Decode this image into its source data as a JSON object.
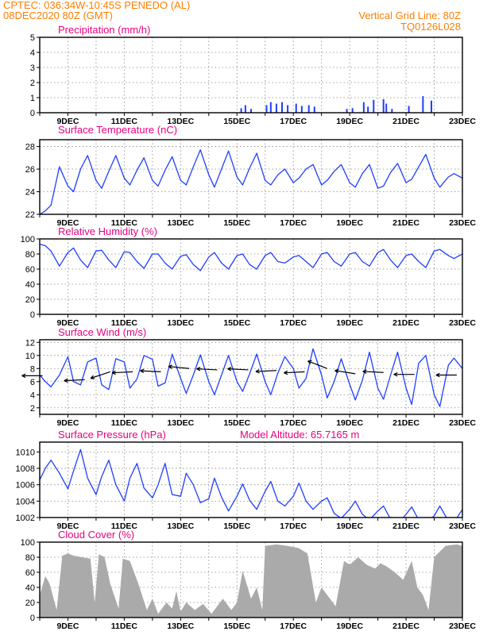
{
  "header": {
    "line1_left": "CPTEC:   036:34W-10:45S   PENEDO (AL)",
    "line2_left": "08DEC2020 80Z (GMT)",
    "line1_right": "Vertical Grid Line: 80Z",
    "line2_right": "TQ0126L028"
  },
  "colors": {
    "header_text": "#ff7f00",
    "panel_title": "#e8007f",
    "line": "#1f3fff",
    "cloud_fill": "#aaaaaa",
    "grid": "#888888"
  },
  "x_axis": {
    "start_day": 8,
    "end_day": 23,
    "tick_labels": [
      "9DEC",
      "11DEC",
      "13DEC",
      "15DEC",
      "17DEC",
      "19DEC",
      "21DEC",
      "23DEC"
    ]
  },
  "chart_data": [
    {
      "type": "bar",
      "title": "Precipitation (mm/h)",
      "ylim": [
        0,
        5
      ],
      "yticks": [
        "0",
        "1",
        "2",
        "3",
        "4",
        "5"
      ],
      "x_days": [
        15.15,
        15.3,
        15.5,
        16.05,
        16.2,
        16.4,
        16.6,
        16.8,
        17.1,
        17.3,
        17.55,
        17.75,
        18.9,
        19.1,
        19.5,
        19.65,
        19.85,
        20.2,
        20.3,
        20.5,
        21.1,
        21.6,
        21.9
      ],
      "values": [
        0.3,
        0.5,
        0.25,
        0.5,
        0.7,
        0.6,
        0.7,
        0.5,
        0.6,
        0.45,
        0.5,
        0.4,
        0.25,
        0.3,
        0.7,
        0.4,
        0.85,
        0.9,
        0.6,
        0.25,
        0.45,
        1.1,
        0.8
      ]
    },
    {
      "type": "line",
      "title": "Surface Temperature (nC)",
      "ylim": [
        22,
        28.6
      ],
      "yticks": [
        "22",
        "24",
        "26",
        "28"
      ],
      "x": [
        8.0,
        8.2,
        8.4,
        8.55,
        8.7,
        9.0,
        9.2,
        9.45,
        9.7,
        10.0,
        10.2,
        10.45,
        10.7,
        11.0,
        11.2,
        11.45,
        11.7,
        12.0,
        12.2,
        12.45,
        12.7,
        13.0,
        13.2,
        13.45,
        13.7,
        14.0,
        14.2,
        14.45,
        14.7,
        15.0,
        15.2,
        15.45,
        15.7,
        16.0,
        16.2,
        16.45,
        16.7,
        17.0,
        17.2,
        17.45,
        17.7,
        18.0,
        18.2,
        18.45,
        18.7,
        19.0,
        19.2,
        19.45,
        19.7,
        20.0,
        20.2,
        20.45,
        20.7,
        21.0,
        21.2,
        21.45,
        21.7,
        22.0,
        22.2,
        22.5,
        22.7,
        23.0
      ],
      "y": [
        22.0,
        22.3,
        22.8,
        24.5,
        26.2,
        24.5,
        24.0,
        26.0,
        27.2,
        25.0,
        24.3,
        25.8,
        27.2,
        25.2,
        24.6,
        25.9,
        27.0,
        25.0,
        24.5,
        25.9,
        27.1,
        25.0,
        24.6,
        26.2,
        27.7,
        25.5,
        24.4,
        26.0,
        27.6,
        25.3,
        24.6,
        26.1,
        27.4,
        25.0,
        24.6,
        25.5,
        26.0,
        24.8,
        25.2,
        26.0,
        26.4,
        24.6,
        25.0,
        25.8,
        26.4,
        24.8,
        24.4,
        25.6,
        26.4,
        24.3,
        24.5,
        25.7,
        26.5,
        24.8,
        25.1,
        26.2,
        27.3,
        25.2,
        24.4,
        25.3,
        25.6,
        25.2
      ]
    },
    {
      "type": "line",
      "title": "Relative Humidity (%)",
      "ylim": [
        0,
        100
      ],
      "yticks": [
        "0",
        "20",
        "40",
        "60",
        "80",
        "100"
      ],
      "x": [
        8.0,
        8.2,
        8.4,
        8.7,
        9.0,
        9.2,
        9.45,
        9.7,
        10.0,
        10.2,
        10.45,
        10.7,
        11.0,
        11.2,
        11.45,
        11.7,
        12.0,
        12.2,
        12.45,
        12.7,
        13.0,
        13.2,
        13.45,
        13.7,
        14.0,
        14.2,
        14.45,
        14.7,
        15.0,
        15.2,
        15.45,
        15.7,
        16.0,
        16.2,
        16.45,
        16.7,
        17.0,
        17.2,
        17.45,
        17.7,
        18.0,
        18.2,
        18.45,
        18.7,
        19.0,
        19.2,
        19.45,
        19.7,
        20.0,
        20.2,
        20.45,
        20.7,
        21.0,
        21.2,
        21.45,
        21.7,
        22.0,
        22.2,
        22.5,
        22.7,
        23.0
      ],
      "y": [
        93,
        91,
        84,
        64,
        82,
        88,
        72,
        62,
        84,
        85,
        72,
        62,
        83,
        82,
        70,
        61,
        80,
        80,
        68,
        60,
        77,
        79,
        66,
        58,
        76,
        82,
        68,
        60,
        78,
        80,
        66,
        60,
        78,
        82,
        70,
        68,
        76,
        78,
        70,
        62,
        80,
        82,
        70,
        64,
        80,
        82,
        70,
        64,
        82,
        86,
        72,
        62,
        78,
        80,
        70,
        62,
        84,
        86,
        78,
        74,
        80
      ]
    },
    {
      "type": "line",
      "title": "Surface Wind (m/s)",
      "ylim": [
        1,
        12.4
      ],
      "yticks": [
        "2",
        "4",
        "6",
        "8",
        "10",
        "12"
      ],
      "x": [
        8.0,
        8.2,
        8.4,
        8.7,
        9.0,
        9.2,
        9.45,
        9.7,
        10.0,
        10.2,
        10.45,
        10.7,
        11.0,
        11.2,
        11.45,
        11.7,
        12.0,
        12.2,
        12.45,
        12.7,
        13.0,
        13.2,
        13.45,
        13.7,
        14.0,
        14.2,
        14.45,
        14.7,
        15.0,
        15.2,
        15.45,
        15.7,
        16.0,
        16.2,
        16.45,
        16.7,
        17.0,
        17.2,
        17.45,
        17.7,
        18.0,
        18.2,
        18.45,
        18.7,
        19.0,
        19.2,
        19.45,
        19.7,
        20.0,
        20.2,
        20.45,
        20.7,
        21.0,
        21.2,
        21.45,
        21.7,
        22.0,
        22.2,
        22.5,
        22.7,
        23.0
      ],
      "y": [
        7.0,
        6.0,
        5.2,
        7.0,
        9.8,
        6.0,
        5.5,
        9.0,
        9.6,
        5.5,
        4.8,
        9.5,
        9.0,
        5.0,
        6.4,
        10.0,
        9.4,
        5.3,
        5.8,
        10.2,
        6.5,
        4.2,
        7.0,
        10.1,
        6.0,
        4.0,
        7.0,
        10.0,
        6.0,
        4.5,
        7.2,
        10.2,
        6.0,
        4.0,
        7.3,
        9.8,
        8.0,
        5.0,
        6.5,
        11.0,
        7.0,
        3.5,
        6.0,
        9.5,
        5.6,
        3.2,
        6.2,
        10.5,
        5.0,
        3.3,
        7.0,
        10.5,
        5.0,
        2.5,
        8.8,
        10.0,
        4.0,
        2.2,
        8.5,
        9.6,
        8.0
      ],
      "arrows": [
        {
          "x": 8.1,
          "y": 6.9,
          "dx": -1.0,
          "dy": 0.0
        },
        {
          "x": 9.6,
          "y": 6.3,
          "dx": -1.0,
          "dy": -0.05
        },
        {
          "x": 10.5,
          "y": 7.5,
          "dx": -0.9,
          "dy": -0.3
        },
        {
          "x": 11.3,
          "y": 7.5,
          "dx": -1.0,
          "dy": -0.05
        },
        {
          "x": 12.3,
          "y": 7.5,
          "dx": -1.0,
          "dy": 0.05
        },
        {
          "x": 13.3,
          "y": 8.0,
          "dx": -1.0,
          "dy": 0.1
        },
        {
          "x": 14.3,
          "y": 7.8,
          "dx": -1.0,
          "dy": 0.05
        },
        {
          "x": 15.4,
          "y": 7.8,
          "dx": -1.0,
          "dy": 0.05
        },
        {
          "x": 16.4,
          "y": 7.7,
          "dx": -1.0,
          "dy": -0.05
        },
        {
          "x": 17.4,
          "y": 7.5,
          "dx": -1.0,
          "dy": -0.05
        },
        {
          "x": 18.2,
          "y": 8.0,
          "dx": -0.9,
          "dy": 0.35
        },
        {
          "x": 19.2,
          "y": 7.2,
          "dx": -0.95,
          "dy": 0.15
        },
        {
          "x": 20.2,
          "y": 7.4,
          "dx": -1.0,
          "dy": 0.05
        },
        {
          "x": 21.3,
          "y": 7.1,
          "dx": -1.0,
          "dy": 0.0
        },
        {
          "x": 22.8,
          "y": 7.0,
          "dx": -1.0,
          "dy": 0.0
        }
      ]
    },
    {
      "type": "line",
      "title": "Surface Pressure (hPa)",
      "subtitle": "Model Altitude: 65.7165 m",
      "ylim": [
        1002,
        1011.2
      ],
      "yticks": [
        "1002",
        "1004",
        "1006",
        "1008",
        "1010"
      ],
      "x": [
        8.0,
        8.2,
        8.4,
        8.7,
        9.0,
        9.2,
        9.45,
        9.7,
        10.0,
        10.2,
        10.45,
        10.7,
        11.0,
        11.2,
        11.45,
        11.7,
        12.0,
        12.2,
        12.45,
        12.7,
        13.0,
        13.2,
        13.45,
        13.7,
        14.0,
        14.2,
        14.45,
        14.7,
        15.0,
        15.2,
        15.45,
        15.7,
        16.0,
        16.2,
        16.45,
        16.7,
        17.0,
        17.2,
        17.45,
        17.7,
        18.0,
        18.2,
        18.45,
        18.7,
        19.0,
        19.2,
        19.45,
        19.7,
        20.0,
        20.2,
        20.45,
        20.7,
        21.0,
        21.2,
        21.45,
        21.7,
        22.0,
        22.2,
        22.5,
        22.7,
        23.0
      ],
      "y": [
        1006.6,
        1008.0,
        1009.0,
        1007.4,
        1005.5,
        1007.7,
        1010.3,
        1006.8,
        1004.8,
        1007.0,
        1009.0,
        1006.0,
        1004.0,
        1006.8,
        1008.6,
        1005.6,
        1004.4,
        1006.0,
        1008.6,
        1004.8,
        1004.6,
        1007.4,
        1006.0,
        1003.8,
        1004.3,
        1006.8,
        1004.5,
        1002.8,
        1004.6,
        1006.1,
        1004.1,
        1003.0,
        1005.2,
        1006.4,
        1004.0,
        1003.4,
        1004.6,
        1006.2,
        1004.0,
        1003.0,
        1004.0,
        1004.4,
        1002.5,
        1001.9,
        1003.0,
        1004.0,
        1002.4,
        1001.7,
        1002.8,
        1003.4,
        1001.8,
        1001.2,
        1002.4,
        1003.3,
        1001.7,
        1001.4,
        1002.2,
        1003.4,
        1001.6,
        1001.4,
        1003.0
      ]
    },
    {
      "type": "area",
      "title": "Cloud Cover (%)",
      "ylim": [
        0,
        100
      ],
      "yticks": [
        "0",
        "20",
        "40",
        "60",
        "80",
        "100"
      ],
      "x": [
        8.0,
        8.2,
        8.35,
        8.6,
        8.8,
        9.0,
        9.2,
        9.5,
        9.8,
        9.95,
        10.1,
        10.3,
        10.5,
        10.8,
        10.95,
        11.2,
        11.5,
        11.8,
        12.0,
        12.2,
        12.5,
        12.7,
        12.85,
        13.0,
        13.2,
        13.5,
        13.8,
        14.1,
        14.3,
        14.5,
        14.8,
        15.0,
        15.2,
        15.5,
        15.7,
        15.9,
        16.0,
        16.4,
        16.8,
        17.2,
        17.5,
        17.8,
        18.0,
        18.2,
        18.5,
        18.8,
        19.0,
        19.3,
        19.6,
        19.9,
        20.1,
        20.3,
        20.6,
        20.9,
        21.2,
        21.4,
        21.6,
        21.8,
        22.0,
        22.4,
        22.8,
        23.0
      ],
      "y": [
        30,
        55,
        45,
        10,
        82,
        85,
        82,
        80,
        78,
        20,
        84,
        80,
        45,
        12,
        78,
        75,
        45,
        10,
        25,
        5,
        20,
        12,
        35,
        8,
        20,
        10,
        18,
        5,
        15,
        25,
        10,
        20,
        62,
        25,
        40,
        10,
        95,
        97,
        95,
        92,
        85,
        20,
        40,
        30,
        15,
        75,
        70,
        80,
        70,
        65,
        72,
        68,
        60,
        50,
        75,
        40,
        30,
        10,
        80,
        95,
        97,
        95
      ]
    }
  ]
}
